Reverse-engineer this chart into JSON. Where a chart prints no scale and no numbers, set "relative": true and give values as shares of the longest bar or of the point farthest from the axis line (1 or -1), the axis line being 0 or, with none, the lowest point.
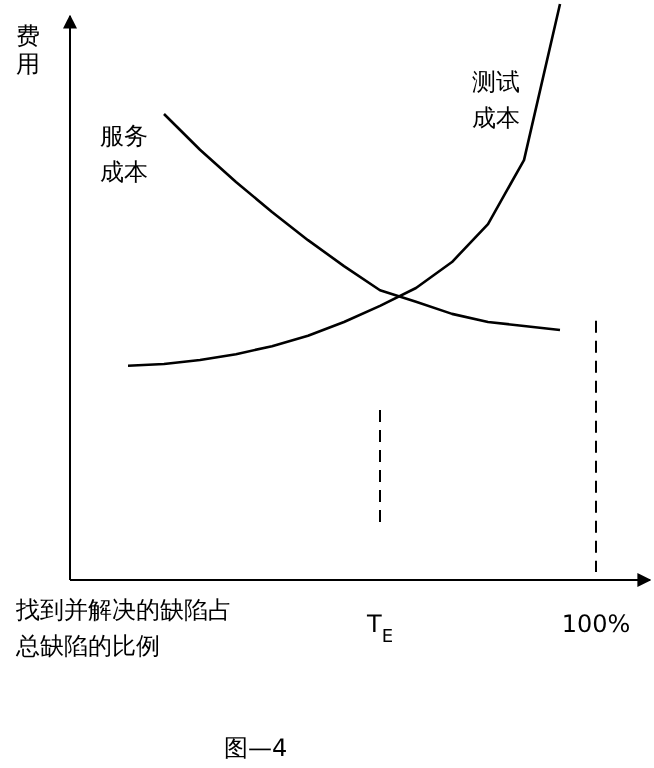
{
  "chart_data": {
    "type": "line",
    "relative": true,
    "ylabel": "费用",
    "xlabel": "找到并解决的缺陷占总缺陷的比例",
    "annotations": [
      "图—4"
    ],
    "categories": [
      null,
      null,
      null,
      null,
      null,
      null,
      null,
      "T$_{E}$",
      null,
      null,
      null,
      null,
      null,
      "100%"
    ],
    "ref_lines": [
      {
        "axis": "x",
        "value": "T$_{E}$",
        "line_style": "dashed"
      },
      {
        "axis": "x",
        "value": "100%",
        "line_style": "dashed"
      }
    ],
    "series": [
      {
        "name": "服务成本",
        "color": "#000000",
        "values": [
          null,
          0.809,
          0.747,
          0.691,
          0.639,
          0.59,
          0.545,
          0.503,
          0.483,
          0.462,
          0.448,
          0.441,
          0.434,
          null
        ]
      },
      {
        "name": "测试成本",
        "color": "#000000",
        "values": [
          0.372,
          0.375,
          0.382,
          0.392,
          0.406,
          0.424,
          0.448,
          0.476,
          0.507,
          0.552,
          0.618,
          0.729,
          1.0,
          null
        ]
      }
    ]
  }
}
